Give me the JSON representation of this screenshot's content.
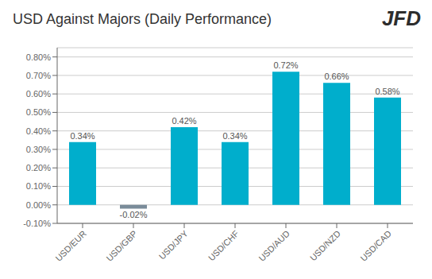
{
  "chart_data": {
    "type": "bar",
    "title": "USD Against Majors (Daily Performance)",
    "annotation": "JFD",
    "categories": [
      "USD/EUR",
      "USD/GBP",
      "USD/JPY",
      "USD/CHF",
      "USD/AUD",
      "USD/NZD",
      "USD/CAD"
    ],
    "values": [
      0.34,
      -0.02,
      0.42,
      0.34,
      0.72,
      0.66,
      0.58
    ],
    "value_labels": [
      "0.34%",
      "-0.02%",
      "0.42%",
      "0.34%",
      "0.72%",
      "0.66%",
      "0.58%"
    ],
    "data_labels": true,
    "colors": [
      "#00AECC",
      "#7a8c99",
      "#00AECC",
      "#00AECC",
      "#00AECC",
      "#00AECC",
      "#00AECC"
    ],
    "ylim": [
      -0.1,
      0.85
    ],
    "yticks": [
      {
        "value": -0.1,
        "label": "-0.10%"
      },
      {
        "value": 0.0,
        "label": "0.00%"
      },
      {
        "value": 0.1,
        "label": "0.10%"
      },
      {
        "value": 0.2,
        "label": "0.20%"
      },
      {
        "value": 0.3,
        "label": "0.30%"
      },
      {
        "value": 0.4,
        "label": "0.40%"
      },
      {
        "value": 0.5,
        "label": "0.50%"
      },
      {
        "value": 0.6,
        "label": "0.60%"
      },
      {
        "value": 0.7,
        "label": "0.70%"
      },
      {
        "value": 0.8,
        "label": "0.80%"
      }
    ],
    "grid": true
  }
}
